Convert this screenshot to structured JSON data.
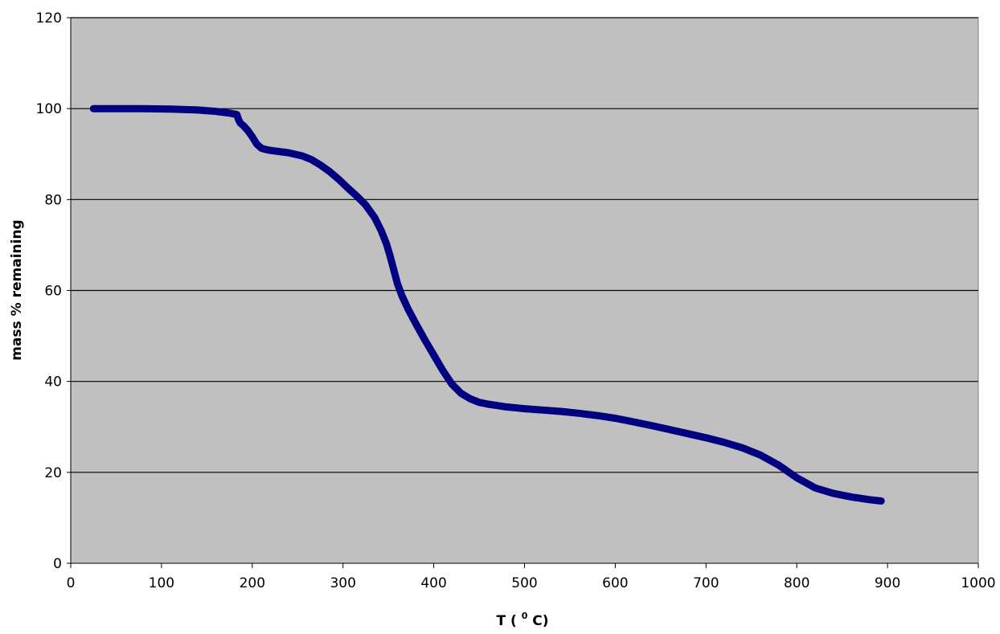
{
  "chart_data": {
    "type": "line",
    "title": "",
    "xlabel": "T (",
    "xlabel_super": "0",
    "xlabel_suffix": "C)",
    "ylabel": "mass % remaining",
    "xlim": [
      0,
      1000
    ],
    "ylim": [
      0,
      120
    ],
    "x_ticks": [
      0,
      100,
      200,
      300,
      400,
      500,
      600,
      700,
      800,
      900,
      1000
    ],
    "y_ticks": [
      0,
      20,
      40,
      60,
      80,
      100,
      120
    ],
    "grid": "horizontal",
    "legend": "none",
    "colors": {
      "plot_background": "#c0c0c0",
      "series_line": "#000080",
      "gridline": "#000000"
    },
    "series": [
      {
        "x": [
          25,
          50,
          80,
          110,
          140,
          160,
          175,
          183,
          185,
          187,
          190,
          195,
          200,
          205,
          210,
          215,
          220,
          240,
          255,
          265,
          275,
          285,
          295,
          305,
          315,
          325,
          335,
          342,
          348,
          352,
          356,
          360,
          365,
          372,
          380,
          390,
          400,
          410,
          420,
          430,
          440,
          450,
          460,
          470,
          480,
          500,
          520,
          540,
          560,
          580,
          600,
          620,
          640,
          660,
          680,
          700,
          720,
          740,
          760,
          780,
          800,
          820,
          840,
          860,
          880,
          893
        ],
        "y": [
          100,
          100,
          100,
          99.9,
          99.7,
          99.4,
          99.0,
          98.7,
          97.5,
          96.8,
          96.3,
          95.2,
          93.8,
          92.2,
          91.3,
          91.0,
          90.8,
          90.3,
          89.6,
          88.8,
          87.6,
          86.2,
          84.5,
          82.6,
          80.8,
          78.8,
          76.0,
          73.2,
          70.2,
          67.5,
          64.5,
          61.5,
          58.8,
          55.8,
          52.8,
          49.2,
          45.8,
          42.4,
          39.4,
          37.4,
          36.2,
          35.4,
          35.0,
          34.7,
          34.4,
          34.0,
          33.7,
          33.4,
          33.0,
          32.5,
          31.9,
          31.1,
          30.3,
          29.4,
          28.5,
          27.6,
          26.6,
          25.4,
          23.8,
          21.6,
          18.8,
          16.6,
          15.4,
          14.6,
          14.0,
          13.7
        ]
      }
    ]
  }
}
